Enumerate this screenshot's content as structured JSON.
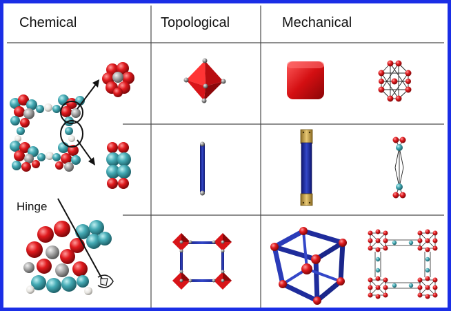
{
  "headers": {
    "chemical": "Chemical",
    "topological": "Topological",
    "mechanical": "Mechanical"
  },
  "annotations": {
    "hinge": "Hinge"
  },
  "colors": {
    "frame_border": "#1a2ee6",
    "atom_red": "#d81418",
    "atom_teal": "#3fa6b0",
    "atom_gray": "#9b9b9b",
    "atom_white": "#ecebe8",
    "strut_blue": "#1f2c9c",
    "bond_black": "#222222"
  },
  "rows": [
    {
      "topological": "octahedron-node",
      "mechanical": [
        "red-rounded-cube",
        "red-ball-and-stick-cluster"
      ]
    },
    {
      "topological": "blue-rod-linker",
      "mechanical": [
        "blue-beam-with-gold-ends",
        "teal-linker-truss"
      ]
    },
    {
      "topological": "square-of-octahedra",
      "mechanical": [
        "3d-cube-frame",
        "square-truss-network"
      ]
    }
  ]
}
